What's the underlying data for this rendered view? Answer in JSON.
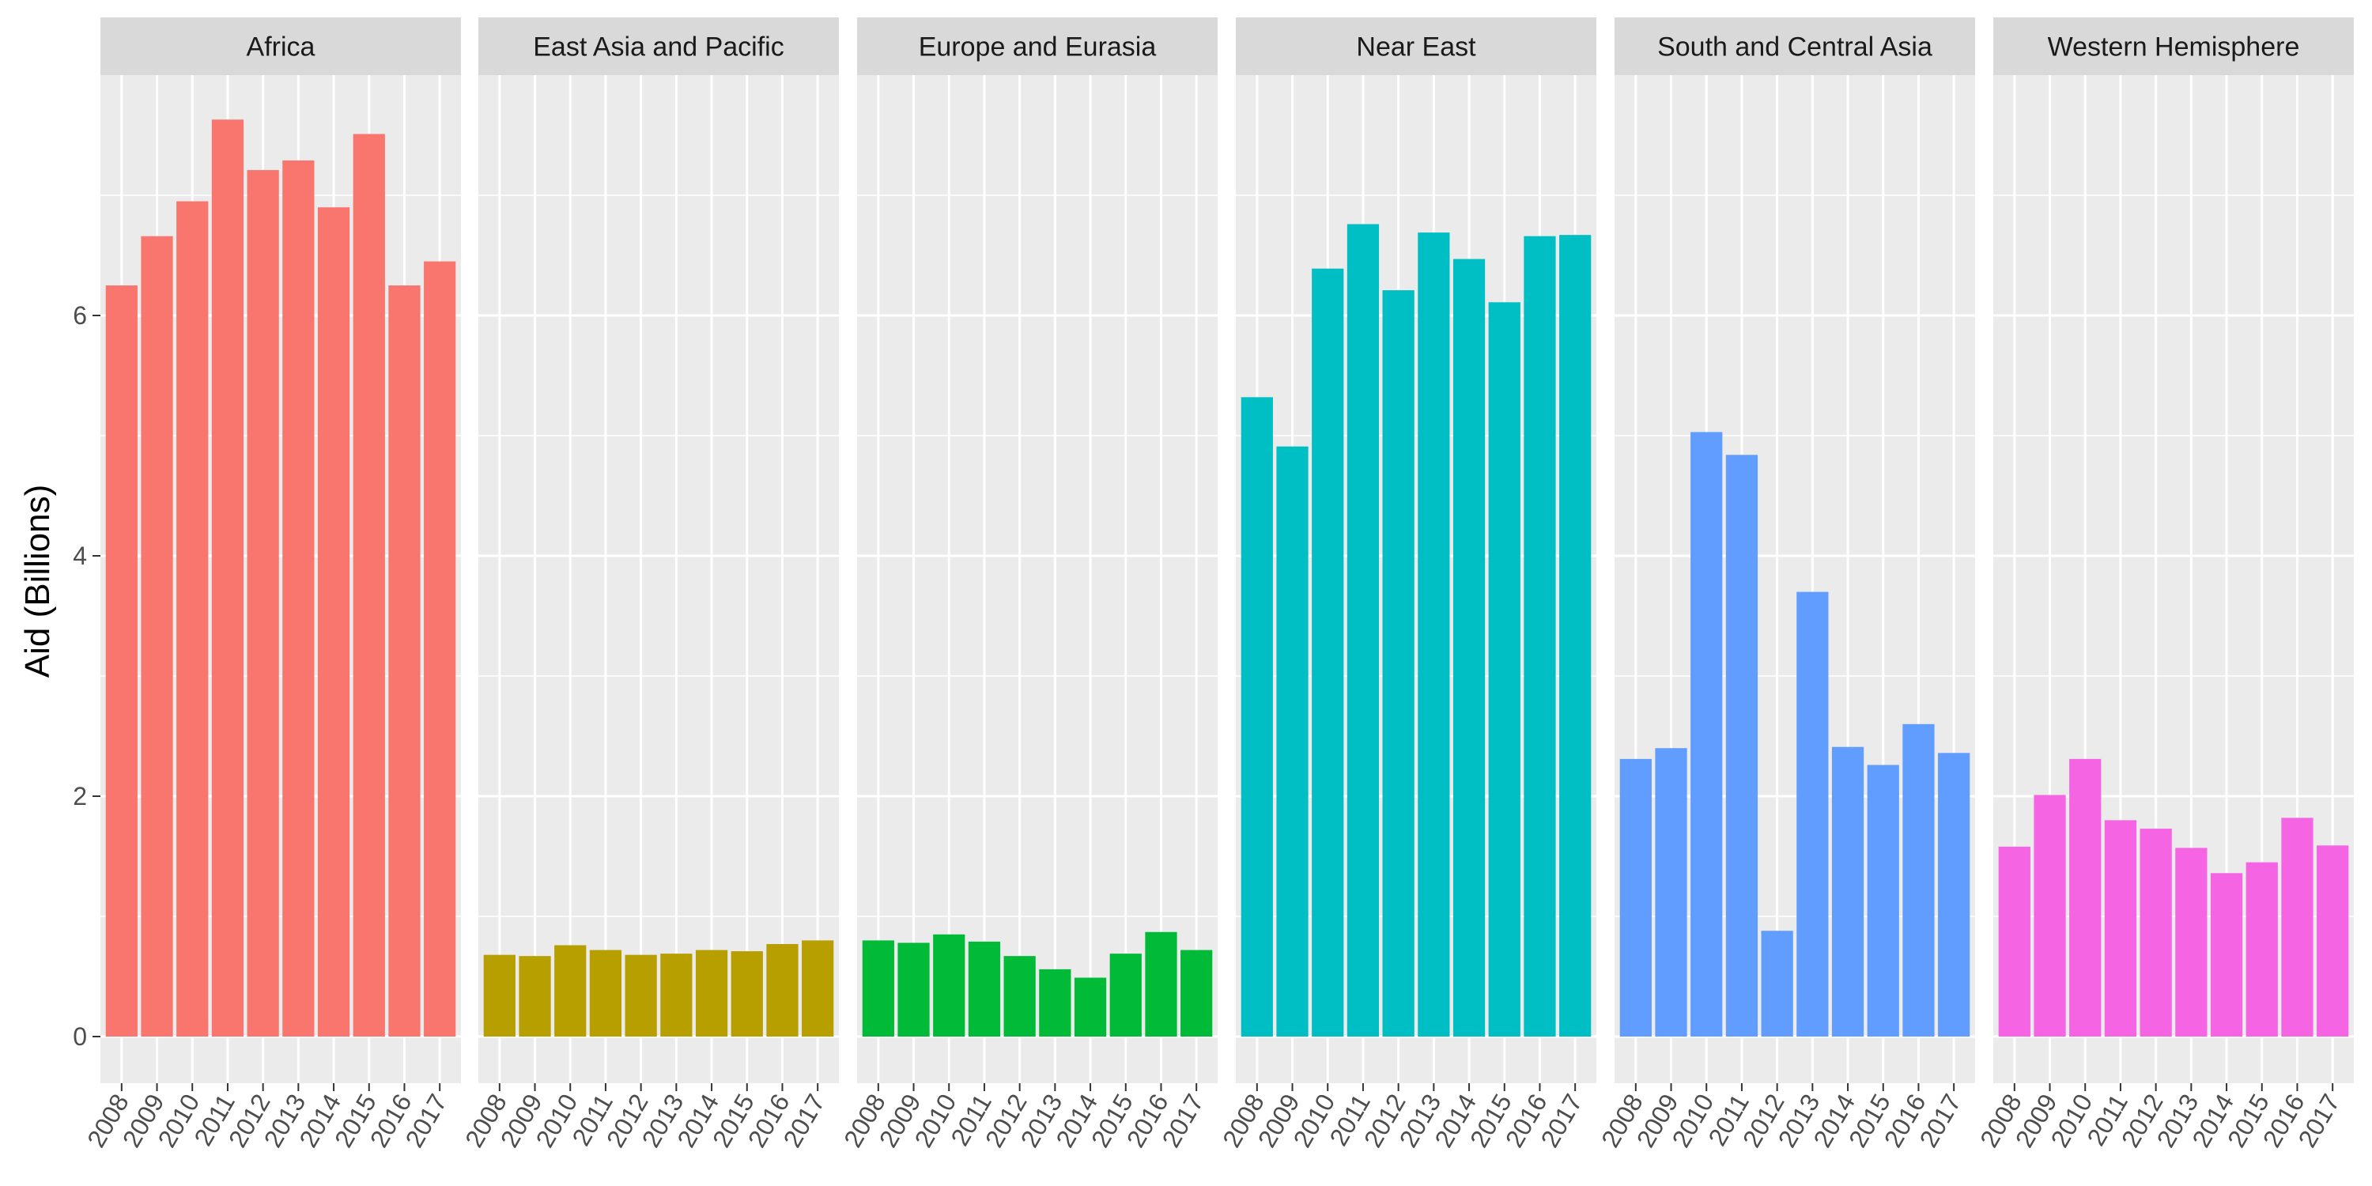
{
  "chart_data": {
    "type": "bar",
    "ylabel": "Aid (Billions)",
    "xlabel": "",
    "title": "",
    "ylim": [
      0,
      8.5
    ],
    "yticks": [
      0,
      2,
      4,
      6
    ],
    "ytick_labels": [
      "0",
      "2",
      "4",
      "6"
    ],
    "categories": [
      "2008",
      "2009",
      "2010",
      "2011",
      "2012",
      "2013",
      "2014",
      "2015",
      "2016",
      "2017"
    ],
    "grid": true,
    "legend": "none",
    "facets": [
      {
        "name": "Africa",
        "color": "#F8766D",
        "values": [
          6.25,
          6.66,
          6.95,
          7.63,
          7.21,
          7.29,
          6.9,
          7.51,
          6.25,
          6.45
        ]
      },
      {
        "name": "East Asia and Pacific",
        "color": "#B79F00",
        "values": [
          0.68,
          0.67,
          0.76,
          0.72,
          0.68,
          0.69,
          0.72,
          0.71,
          0.77,
          0.8
        ]
      },
      {
        "name": "Europe and Eurasia",
        "color": "#00BA38",
        "values": [
          0.8,
          0.78,
          0.85,
          0.79,
          0.67,
          0.56,
          0.49,
          0.69,
          0.87,
          0.72
        ]
      },
      {
        "name": "Near East",
        "color": "#00BFC4",
        "values": [
          5.32,
          4.91,
          6.39,
          6.76,
          6.21,
          6.69,
          6.47,
          6.11,
          6.66,
          6.67
        ]
      },
      {
        "name": "South and Central Asia",
        "color": "#619CFF",
        "values": [
          2.31,
          2.4,
          5.03,
          4.84,
          0.88,
          3.7,
          2.41,
          2.26,
          2.6,
          2.36
        ]
      },
      {
        "name": "Western Hemisphere",
        "color": "#F564E3",
        "values": [
          1.58,
          2.01,
          2.31,
          1.8,
          1.73,
          1.57,
          1.36,
          1.45,
          1.82,
          1.59
        ]
      }
    ]
  }
}
